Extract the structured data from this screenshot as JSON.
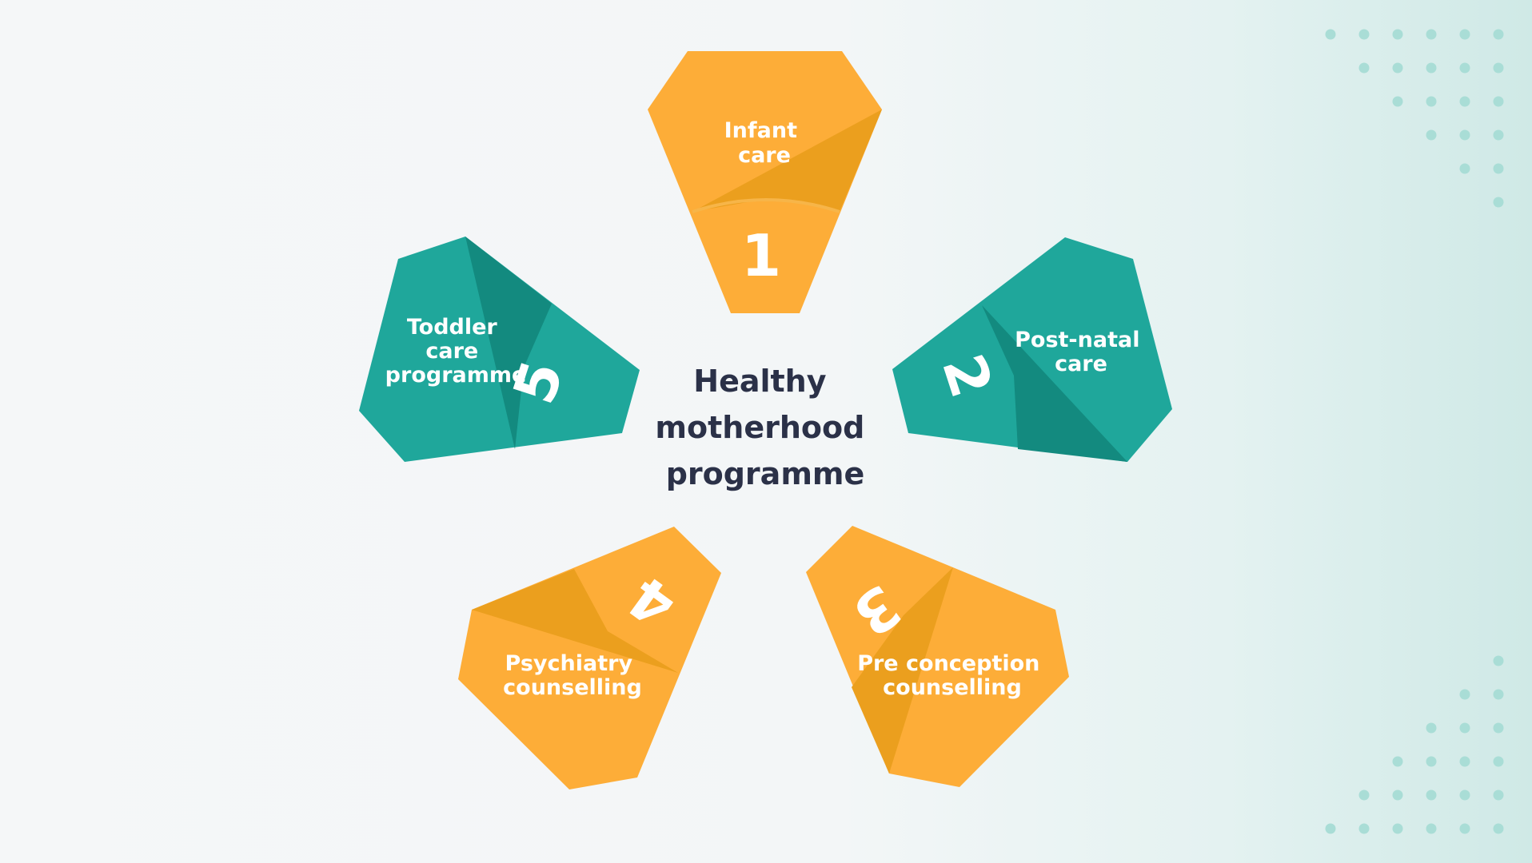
{
  "diagram": {
    "center": {
      "lines": [
        "Healthy",
        "motherhood",
        "programme"
      ]
    },
    "steps": [
      {
        "number": "1",
        "lines": [
          "Infant",
          "care"
        ],
        "color": "orange"
      },
      {
        "number": "2",
        "lines": [
          "Post-natal",
          "care"
        ],
        "color": "teal"
      },
      {
        "number": "3",
        "lines": [
          "Pre conception",
          "counselling"
        ],
        "color": "orange"
      },
      {
        "number": "4",
        "lines": [
          "Psychiatry",
          "counselling"
        ],
        "color": "orange"
      },
      {
        "number": "5",
        "lines": [
          "Toddler",
          "care",
          "programme"
        ],
        "color": "teal"
      }
    ]
  },
  "colors": {
    "orange": "#FDAD38",
    "orange_dark": "#EB9F1E",
    "teal": "#1FA79B",
    "teal_dark": "#138A7F",
    "title": "#2B3148",
    "dots": "#A9DDD6"
  }
}
